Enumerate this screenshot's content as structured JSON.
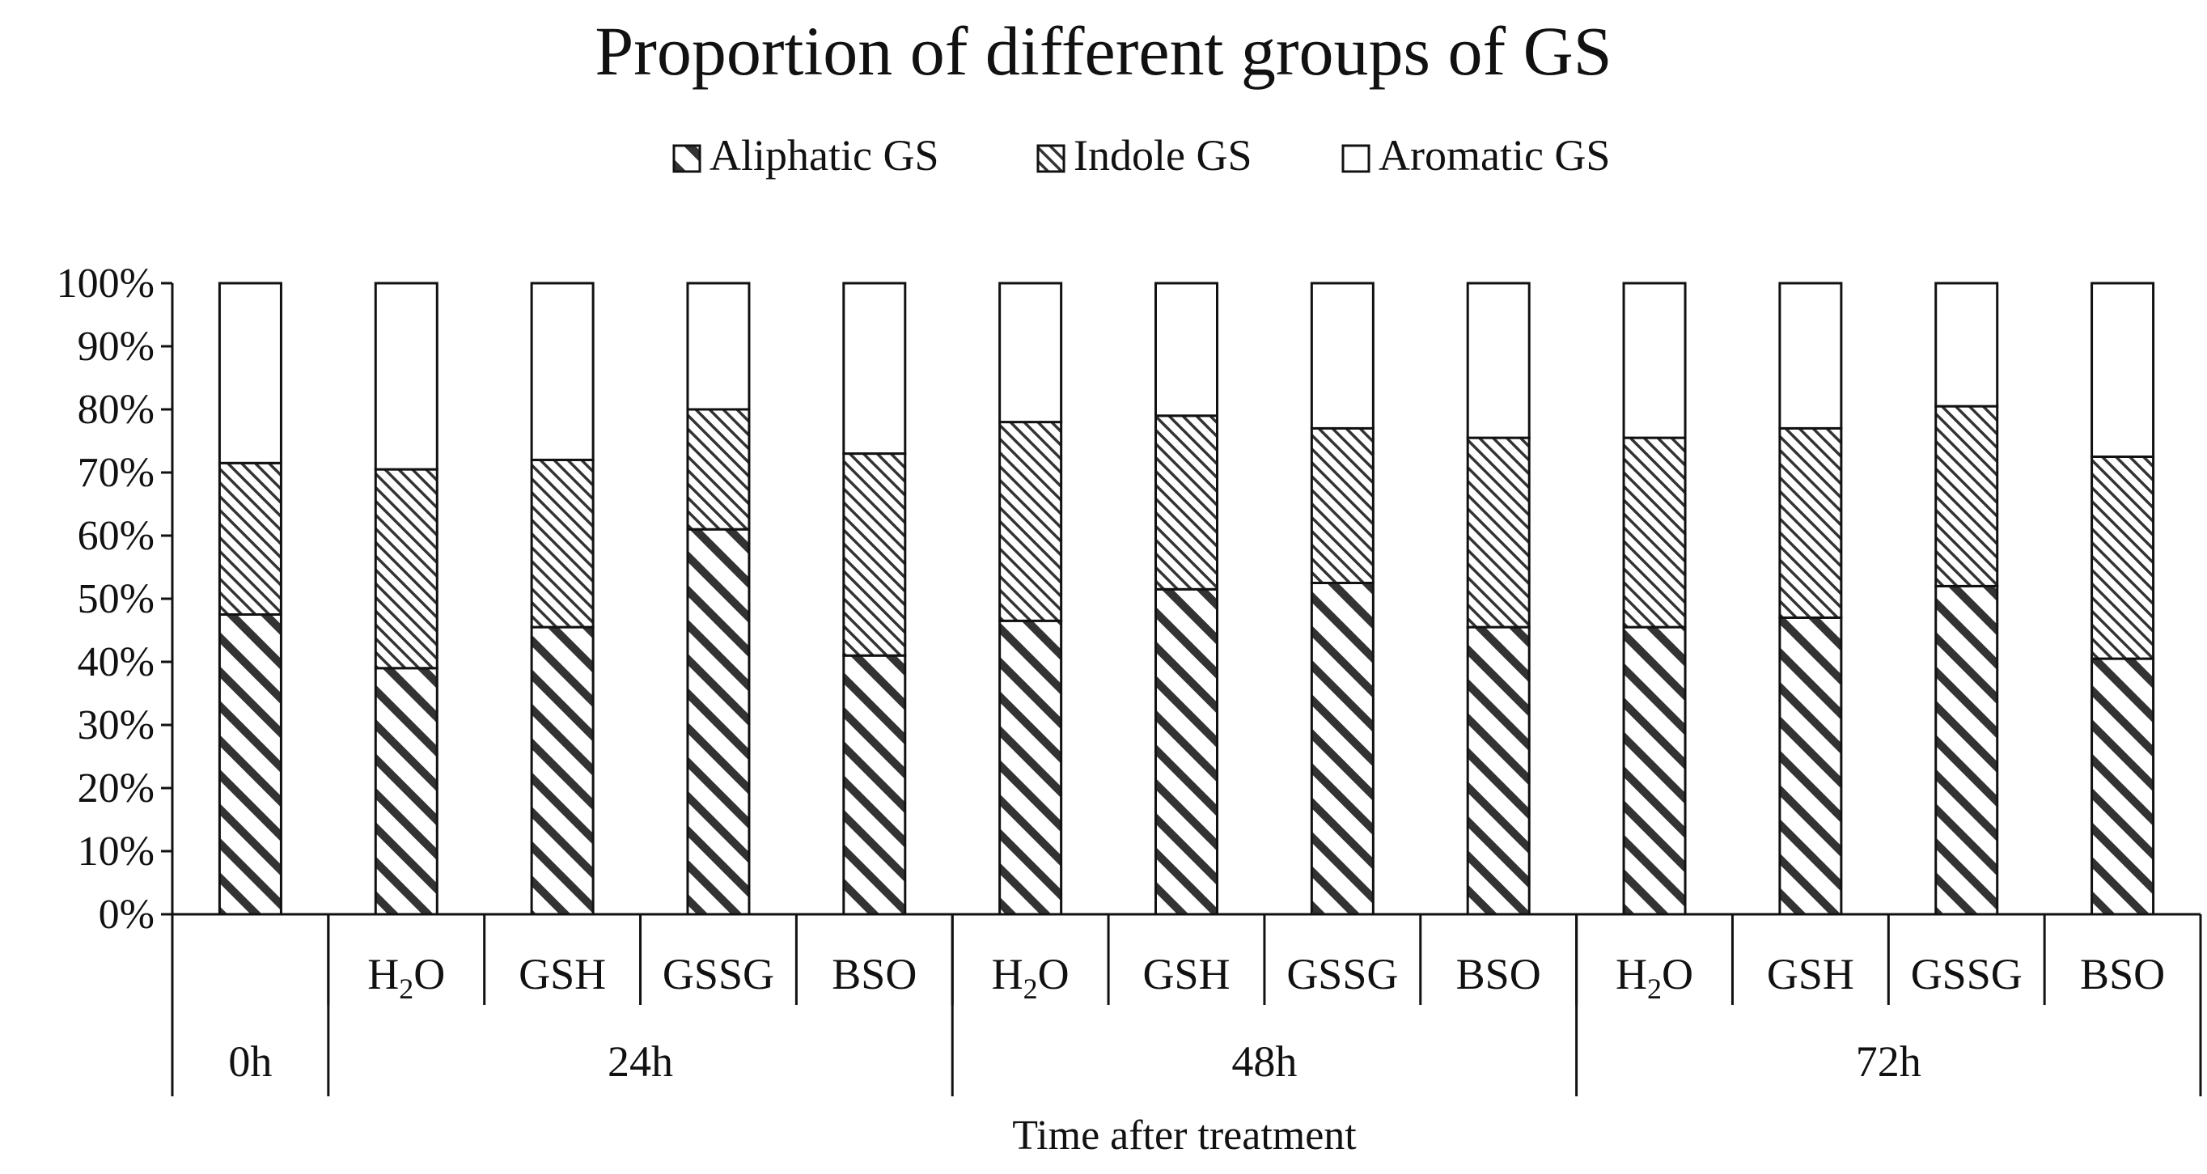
{
  "chart_data": {
    "type": "stacked-bar-100",
    "title": "Proportion of different groups of GS",
    "xlabel": "Time after treatment",
    "ylabel": "",
    "ylim": [
      0,
      100
    ],
    "yticks": [
      "0%",
      "10%",
      "20%",
      "30%",
      "40%",
      "50%",
      "60%",
      "70%",
      "80%",
      "90%",
      "100%"
    ],
    "legend": {
      "position": "top-center"
    },
    "series": [
      {
        "name": "Aliphatic GS",
        "pattern": "wide-hatch",
        "values": [
          47.5,
          39,
          45.5,
          61,
          41,
          46.5,
          51.5,
          52.5,
          45.5,
          45.5,
          47,
          52,
          40.5
        ]
      },
      {
        "name": "Indole GS",
        "pattern": "fine-hatch",
        "values": [
          24,
          31.5,
          26.5,
          19,
          32,
          31.5,
          27.5,
          24.5,
          30,
          30,
          30,
          28.5,
          32
        ]
      },
      {
        "name": "Aromatic GS",
        "pattern": "none",
        "values": [
          28.5,
          29.5,
          28,
          20,
          27,
          22,
          21,
          23,
          24.5,
          24.5,
          23,
          19.5,
          27.5
        ]
      }
    ],
    "bars": [
      {
        "treatment": "",
        "time": "0h"
      },
      {
        "treatment": "H2O",
        "time": "24h"
      },
      {
        "treatment": "GSH",
        "time": "24h"
      },
      {
        "treatment": "GSSG",
        "time": "24h"
      },
      {
        "treatment": "BSO",
        "time": "24h"
      },
      {
        "treatment": "H2O",
        "time": "48h"
      },
      {
        "treatment": "GSH",
        "time": "48h"
      },
      {
        "treatment": "GSSG",
        "time": "48h"
      },
      {
        "treatment": "BSO",
        "time": "48h"
      },
      {
        "treatment": "H2O",
        "time": "72h"
      },
      {
        "treatment": "GSH",
        "time": "72h"
      },
      {
        "treatment": "GSSG",
        "time": "72h"
      },
      {
        "treatment": "BSO",
        "time": "72h"
      }
    ],
    "time_groups": [
      {
        "label": "0h",
        "start": 0,
        "end": 0
      },
      {
        "label": "24h",
        "start": 1,
        "end": 4
      },
      {
        "label": "48h",
        "start": 5,
        "end": 8
      },
      {
        "label": "72h",
        "start": 9,
        "end": 12
      }
    ]
  }
}
